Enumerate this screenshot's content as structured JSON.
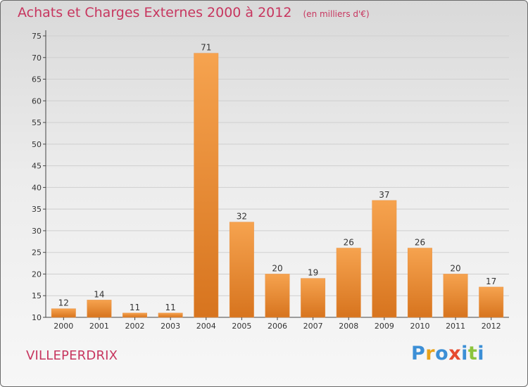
{
  "title": "Achats et Charges Externes 2000 à 2012",
  "subtitle": "(en milliers d'€)",
  "commune": "VILLEPERDRIX",
  "logo": {
    "letters": [
      "P",
      "r",
      "o",
      "x",
      "i",
      "t",
      "i"
    ],
    "colors": [
      "#3c8fd6",
      "#e8a21a",
      "#3c8fd6",
      "#e64a2e",
      "#3c8fd6",
      "#8cc43c",
      "#3c8fd6"
    ]
  },
  "colors": {
    "bar_top": "#f6a34f",
    "bar_bottom": "#d7741e",
    "grid": "#cfcfcf",
    "axis": "#444444",
    "title": "#c7365f"
  },
  "chart_data": {
    "type": "bar",
    "categories": [
      "2000",
      "2001",
      "2002",
      "2003",
      "2004",
      "2005",
      "2006",
      "2007",
      "2008",
      "2009",
      "2010",
      "2011",
      "2012"
    ],
    "values": [
      12,
      14,
      11,
      11,
      71,
      32,
      20,
      19,
      26,
      37,
      26,
      20,
      17
    ],
    "title": "Achats et Charges Externes 2000 à 2012",
    "xlabel": "",
    "ylabel": "",
    "ylim": [
      10,
      75
    ],
    "yticks": [
      10,
      15,
      20,
      25,
      30,
      35,
      40,
      45,
      50,
      55,
      60,
      65,
      70,
      75
    ],
    "grid": true
  }
}
